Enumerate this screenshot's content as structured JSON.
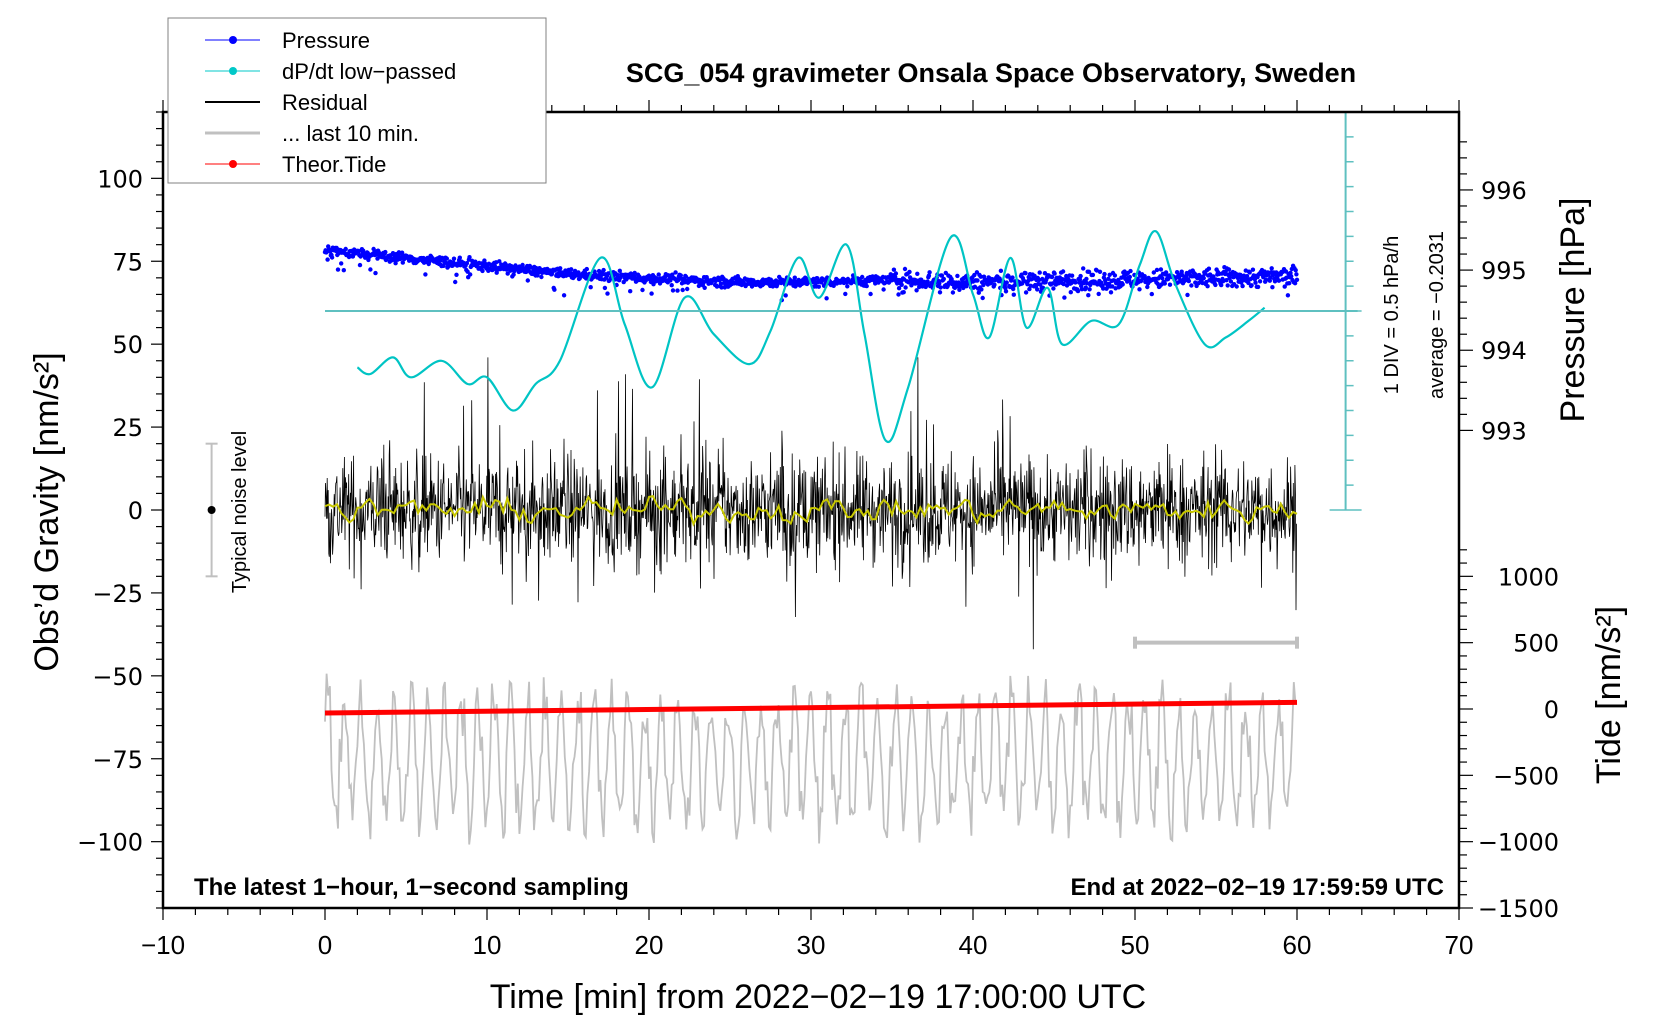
{
  "chart_data": {
    "type": "line",
    "title": "SCG_054 gravimeter Onsala Space Observatory, Sweden",
    "xlabel": "Time [min] from 2022−02−19 17:00:00 UTC",
    "ylabel_left": "Obs’d Gravity [nm/s²]",
    "ylabel_right_pressure": "Pressure [hPa]",
    "ylabel_right_tide": "Tide [nm/s²]",
    "xlim": [
      -10,
      70
    ],
    "ylim": [
      -120,
      120
    ],
    "x_ticks": [
      -10,
      0,
      10,
      20,
      30,
      40,
      50,
      60,
      70
    ],
    "x_tick_labels": [
      "−10",
      "0",
      "10",
      "20",
      "30",
      "40",
      "50",
      "60",
      "70"
    ],
    "y_ticks": [
      -100,
      -75,
      -50,
      -25,
      0,
      25,
      50,
      75,
      100
    ],
    "y_tick_labels": [
      "−100",
      "−75",
      "−50",
      "−25",
      "0",
      "25",
      "50",
      "75",
      "100"
    ],
    "pressure_axis": {
      "ticks": [
        993,
        994,
        995,
        996
      ],
      "labels": [
        "993",
        "994",
        "995",
        "996"
      ],
      "map_to_gravity": [
        [
          993,
          24
        ],
        [
          996,
          96.5
        ]
      ]
    },
    "tide_axis": {
      "ticks": [
        -1500,
        -1000,
        -500,
        0,
        500,
        1000
      ],
      "labels": [
        "−1500",
        "−1000",
        "−500",
        "0",
        "500",
        "1000"
      ],
      "map_to_gravity": [
        [
          -1500,
          -120
        ],
        [
          1000,
          -20
        ]
      ]
    },
    "dpdt_axis": {
      "div_label": "1 DIV = 0.5 hPa/h",
      "average_label": "average = −0.2031",
      "x_position_min": 63,
      "zero_gravity_level": 60,
      "top_gravity_level": 120,
      "bottom_gravity_level": 0,
      "divisions": 16
    },
    "legend": {
      "position": "top-left",
      "entries": [
        {
          "label": "Pressure",
          "color": "#0000ff",
          "marker": "dot"
        },
        {
          "label": "dP/dt low−passed",
          "color": "#00c8c8",
          "marker": "dot"
        },
        {
          "label": "Residual",
          "color": "#000000",
          "marker": "line"
        },
        {
          "label": "... last 10 min.",
          "color": "#c0c0c0",
          "marker": "line"
        },
        {
          "label": "Theor.Tide",
          "color": "#ff0000",
          "marker": "dot"
        }
      ]
    },
    "annotations": {
      "bottom_left": "The latest 1−hour, 1−second sampling",
      "bottom_right": "End at 2022−02−19 17:59:59 UTC",
      "noise_label": "Typical noise level",
      "noise_range": [
        -20,
        20
      ],
      "noise_x_min": -7,
      "last10_bar": {
        "x_start": 50,
        "x_end": 60,
        "y": -40
      }
    },
    "series": [
      {
        "name": "Pressure",
        "unit": "hPa",
        "x": [
          0,
          5,
          10,
          15,
          20,
          25,
          30,
          35,
          40,
          45,
          50,
          55,
          60
        ],
        "values": [
          995.25,
          995.15,
          995.05,
          994.95,
          994.9,
          994.85,
          994.85,
          994.88,
          994.85,
          994.87,
          994.88,
          994.9,
          994.92
        ]
      },
      {
        "name": "dP/dt low-passed (gravity-scale)",
        "x": [
          2,
          2.8,
          4.2,
          5.3,
          7.2,
          8.8,
          10,
          11.6,
          13,
          14.5,
          17,
          18.5,
          20.2,
          22.2,
          24,
          26.2,
          27.5,
          29.2,
          30.5,
          32.2,
          33.3,
          34.6,
          36,
          38.6,
          40,
          41,
          42.3,
          43.3,
          44.6,
          45.5,
          47.3,
          49,
          50.3,
          51.3,
          52.5,
          54.3,
          55.6,
          57,
          58
        ],
        "values": [
          43,
          41,
          46,
          40,
          45,
          38,
          40,
          30,
          38,
          45,
          76,
          56,
          37,
          64,
          53,
          44,
          54,
          76,
          64,
          80,
          53,
          21,
          37,
          82,
          65,
          52,
          76,
          55,
          67,
          50,
          57,
          56,
          74,
          84,
          68,
          50,
          52,
          57,
          61
        ]
      },
      {
        "name": "Residual",
        "x_range": [
          0,
          60
        ],
        "noise_amplitude": 20,
        "smoothed_color": "#c8c800"
      },
      {
        "name": "... last 10 min.",
        "x_range": [
          0,
          60
        ],
        "offset_gravity": -75,
        "amplitude_gravity": 25
      },
      {
        "name": "Theor.Tide",
        "unit": "nm/s²",
        "x": [
          0,
          60
        ],
        "values": [
          -30,
          50
        ]
      }
    ]
  },
  "colors": {
    "pressure": "#0000ff",
    "dpdt": "#00c4c4",
    "dpdt_axis": "#5fc0c0",
    "residual": "#000000",
    "smooth": "#c8c800",
    "last10": "#c0c0c0",
    "tide": "#ff0000"
  }
}
